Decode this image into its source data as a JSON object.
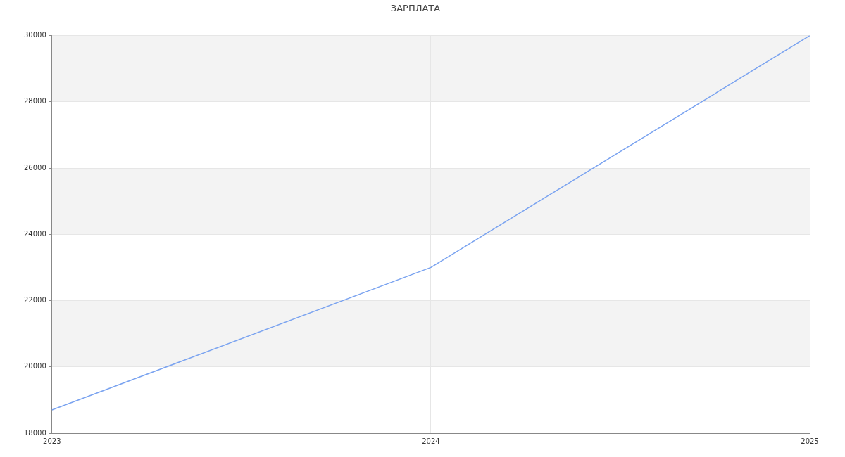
{
  "chart_data": {
    "type": "line",
    "title": "ЗАРПЛАТА",
    "categories": [
      "2023",
      "2024",
      "2025"
    ],
    "series": [
      {
        "color": "#7aa3f0",
        "values": [
          18700,
          23000,
          30000
        ]
      }
    ],
    "ylim": [
      18000,
      30000
    ],
    "yticks": [
      18000,
      20000,
      22000,
      24000,
      26000,
      28000,
      30000
    ],
    "bands": [
      {
        "axis": "y",
        "from": 20000,
        "to": 22000,
        "color": "#f3f3f3"
      },
      {
        "axis": "y",
        "from": 24000,
        "to": 26000,
        "color": "#f3f3f3"
      },
      {
        "axis": "y",
        "from": 28000,
        "to": 30000,
        "color": "#f3f3f3"
      }
    ],
    "grid": true,
    "legend": false,
    "marker": "none",
    "line_style": "solid"
  }
}
